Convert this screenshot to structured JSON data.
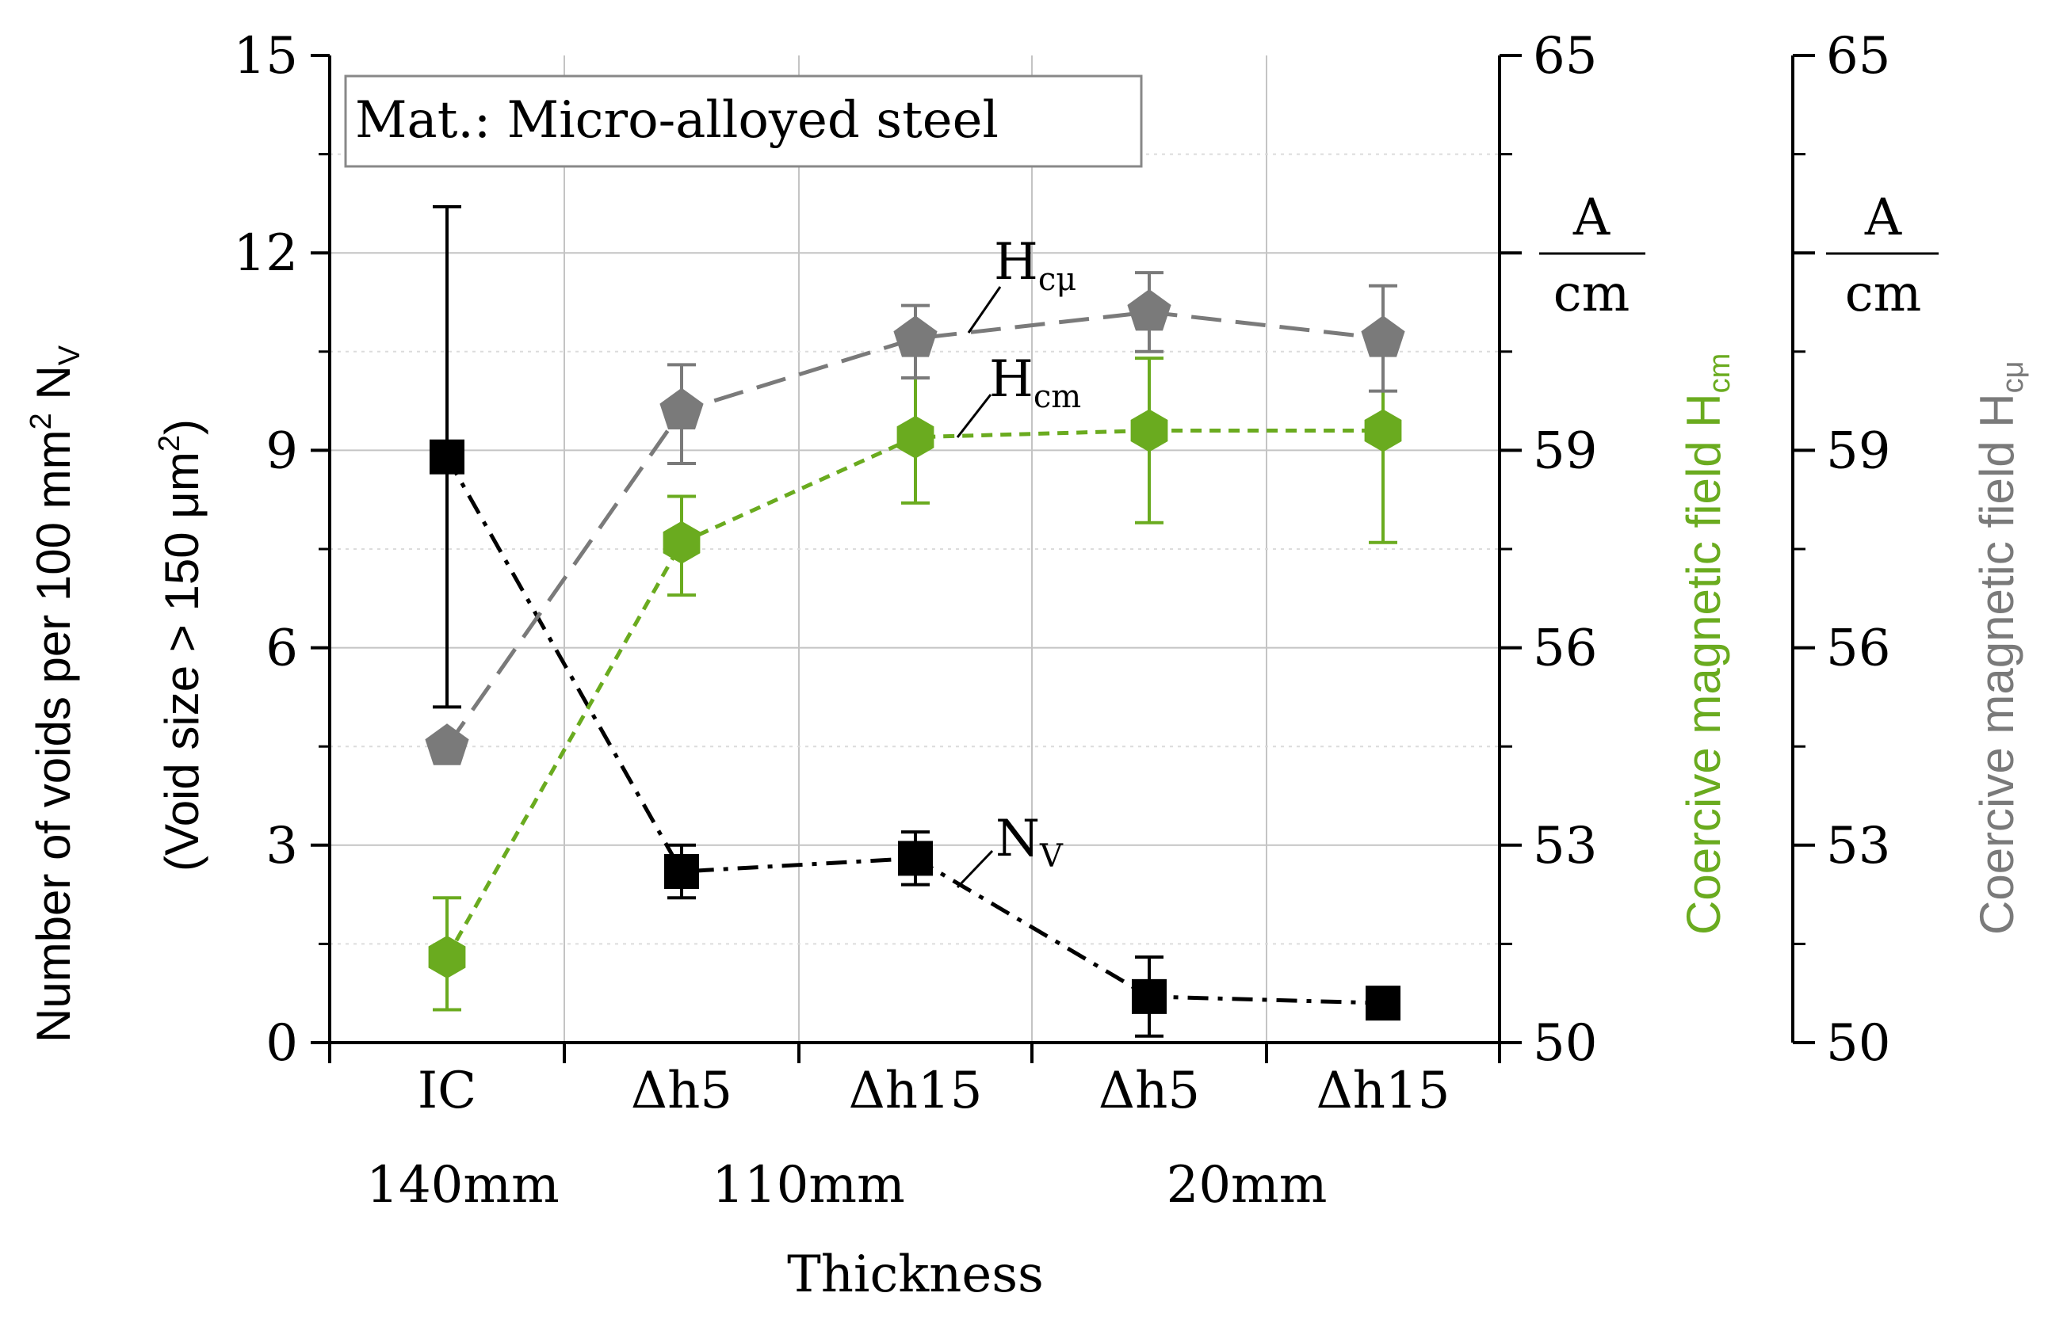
{
  "chart_data": {
    "type": "line",
    "categories": [
      "IC",
      "Δh5",
      "Δh15",
      "Δh5",
      "Δh15"
    ],
    "thickness_labels": [
      "140mm",
      "110mm",
      "20mm"
    ],
    "xlabel": "Thickness",
    "legend_box": "Mat.: Micro-alloyed steel",
    "y_left": {
      "label_line1": "Number of voids per 100  mm",
      "label_sup": "2",
      "label_mid": " N",
      "label_sub": "V",
      "label_line2": "(Void size > 150 μm",
      "label_line2_sup": "2",
      "label_line2_end": ")",
      "ylim": [
        0,
        15
      ],
      "ticks": [
        "0",
        "3",
        "6",
        "9",
        "12",
        "15"
      ]
    },
    "y_right1": {
      "label": "Coercive magnetic field H",
      "label_sub": "cm",
      "unit_top": "A",
      "unit_bottom": "cm",
      "ylim": [
        50,
        65
      ],
      "ticks": [
        "50",
        "53",
        "56",
        "59",
        "65"
      ],
      "color": "#6aab1f"
    },
    "y_right2": {
      "label": "Coercive magnetic field H",
      "label_sub": "cμ",
      "unit_top": "A",
      "unit_bottom": "cm",
      "ylim": [
        50,
        65
      ],
      "ticks": [
        "50",
        "53",
        "56",
        "59",
        "65"
      ],
      "color": "#7a7a7a"
    },
    "series": [
      {
        "name": "N",
        "name_sub": "V",
        "axis": "left",
        "color": "#000000",
        "marker": "square",
        "values": [
          8.9,
          2.6,
          2.8,
          0.7,
          0.6
        ],
        "err_low": [
          5.1,
          2.2,
          2.4,
          0.1,
          null
        ],
        "err_high": [
          12.7,
          3.0,
          3.2,
          1.3,
          null
        ]
      },
      {
        "name": "H",
        "name_sub": "cm",
        "axis": "right1",
        "color": "#6aab1f",
        "marker": "hexagon",
        "values": [
          51.3,
          57.6,
          59.2,
          59.3,
          59.3
        ],
        "err_low": [
          50.5,
          56.8,
          58.2,
          57.9,
          57.6
        ],
        "err_high": [
          52.2,
          58.3,
          60.1,
          60.4,
          60.8
        ]
      },
      {
        "name": "H",
        "name_sub": "cμ",
        "axis": "right2",
        "color": "#7a7a7a",
        "marker": "pentagon",
        "values": [
          54.5,
          59.6,
          60.7,
          61.1,
          60.7
        ],
        "err_low": [
          null,
          58.8,
          60.1,
          60.5,
          59.9
        ],
        "err_high": [
          null,
          60.3,
          61.2,
          61.7,
          61.5
        ]
      }
    ]
  }
}
